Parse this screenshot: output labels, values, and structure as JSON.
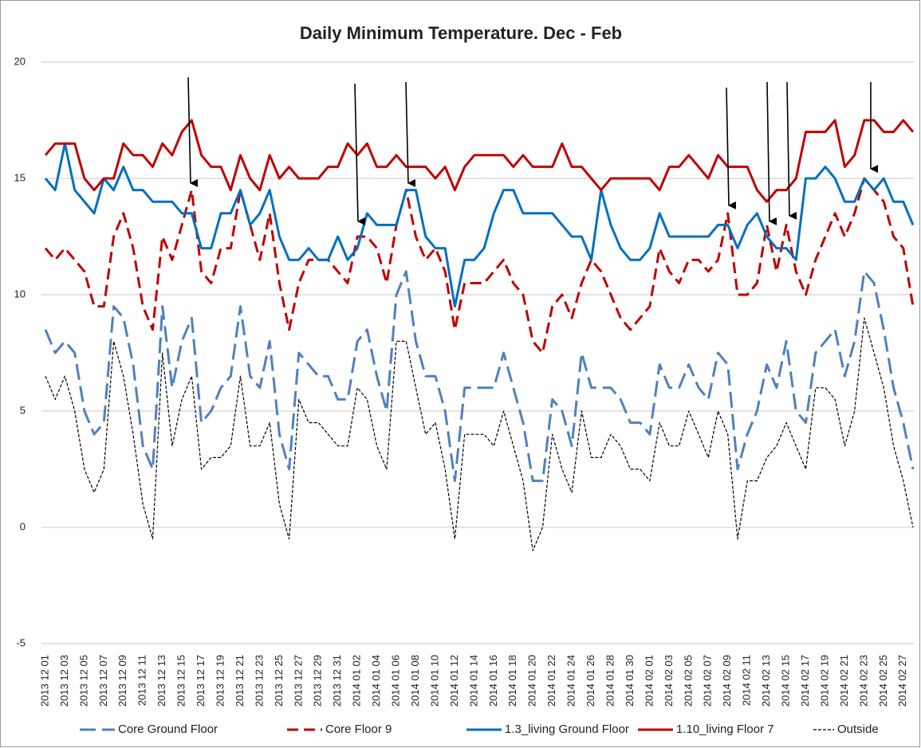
{
  "chart_data": {
    "type": "line",
    "title": "Daily Minimum Temperature. Dec - Feb",
    "categories": [
      "2013 12 01",
      null,
      "2013 12 03",
      null,
      "2013 12 05",
      null,
      "2013 12 07",
      null,
      "2013 12 09",
      null,
      "2013 12 11",
      null,
      "2013 12 13",
      null,
      "2013 12 15",
      null,
      "2013 12 17",
      null,
      "2013 12 19",
      null,
      "2013 12 21",
      null,
      "2013 12 23",
      null,
      "2013 12 25",
      null,
      "2013 12 27",
      null,
      "2013 12 29",
      null,
      "2013 12 31",
      null,
      "2014 01 02",
      null,
      "2014 01 04",
      null,
      "2014 01 06",
      null,
      "2014 01 08",
      null,
      "2014 01 10",
      null,
      "2014 01 12",
      null,
      "2014 01 14",
      null,
      "2014 01 16",
      null,
      "2014 01 18",
      null,
      "2014 01 20",
      null,
      "2014 01 22",
      null,
      "2014 01 24",
      null,
      "2014 01 26",
      null,
      "2014 01 28",
      null,
      "2014 01 30",
      null,
      "2014 02 01",
      null,
      "2014 02 03",
      null,
      "2014 02 05",
      null,
      "2014 02 07",
      null,
      "2014 02 09",
      null,
      "2014 02 11",
      null,
      "2014 02 13",
      null,
      "2014 02 15",
      null,
      "2014 02 17",
      null,
      "2014 02 19",
      null,
      "2014 02 21",
      null,
      "2014 02 23",
      null,
      "2014 02 25",
      null,
      "2014 02 27",
      null
    ],
    "series": [
      {
        "name": "Core Ground Floor",
        "color": "#4f81bd",
        "line_style": "long-dash",
        "values": [
          8.5,
          7.5,
          8,
          7.5,
          5,
          4,
          4.5,
          9.5,
          9,
          7,
          3.5,
          2.5,
          9.5,
          6,
          8,
          9,
          4.5,
          5,
          6,
          6.5,
          9.5,
          6.5,
          6,
          8,
          4,
          2.5,
          7.5,
          7,
          6.5,
          6.5,
          5.5,
          5.5,
          8,
          8.5,
          6.5,
          5,
          10,
          11,
          8,
          6.5,
          6.5,
          5,
          2,
          6,
          6,
          6,
          6,
          7.5,
          6,
          4.5,
          2,
          2,
          5.5,
          5,
          3.5,
          7.5,
          6,
          6,
          6,
          5.5,
          4.5,
          4.5,
          4,
          7,
          6,
          6,
          7,
          6,
          5.5,
          7.5,
          7,
          2.5,
          4,
          5,
          7,
          6,
          8,
          5,
          4.5,
          7.5,
          8,
          8.5,
          6.5,
          8,
          11,
          10.5,
          8.5,
          6,
          4.5,
          2.5
        ]
      },
      {
        "name": "Core Floor 9",
        "color": "#c00000",
        "line_style": "dash",
        "values": [
          12,
          11.5,
          12,
          11.5,
          11,
          9.5,
          9.5,
          12.5,
          13.5,
          12,
          9.5,
          8.5,
          12.5,
          11.5,
          13,
          14.5,
          11,
          10.5,
          12,
          12,
          14.5,
          13,
          11.5,
          13.5,
          10.5,
          8.5,
          10.5,
          11.5,
          11.5,
          11.5,
          11,
          10.5,
          12.5,
          12.5,
          12,
          10.5,
          13,
          14.5,
          12.5,
          11.5,
          12,
          11,
          8.5,
          10.5,
          10.5,
          10.5,
          11,
          11.5,
          10.5,
          10,
          8,
          7.5,
          9.5,
          10,
          9,
          10.5,
          11.5,
          11,
          10,
          9,
          8.5,
          9,
          9.5,
          12,
          11,
          10.5,
          11.5,
          11.5,
          11,
          11.5,
          13.5,
          10,
          10,
          10.5,
          13,
          11,
          13,
          11,
          10,
          11.5,
          12.5,
          13.5,
          12.5,
          13.5,
          15,
          14.5,
          14,
          12.5,
          12,
          9.5
        ]
      },
      {
        "name": "1.3_living Ground Floor",
        "color": "#0070c0",
        "line_style": "solid",
        "values": [
          15,
          14.5,
          16.5,
          14.5,
          14,
          13.5,
          15,
          14.5,
          15.5,
          14.5,
          14.5,
          14,
          14,
          14,
          13.5,
          13.5,
          12,
          12,
          13.5,
          13.5,
          14.5,
          13,
          13.5,
          14.5,
          12.5,
          11.5,
          11.5,
          12,
          11.5,
          11.5,
          12.5,
          11.5,
          12,
          13.5,
          13,
          13,
          13,
          14.5,
          14.5,
          12.5,
          12,
          12,
          9.5,
          11.5,
          11.5,
          12,
          13.5,
          14.5,
          14.5,
          13.5,
          13.5,
          13.5,
          13.5,
          13,
          12.5,
          12.5,
          11.5,
          14.5,
          13,
          12,
          11.5,
          11.5,
          12,
          13.5,
          12.5,
          12.5,
          12.5,
          12.5,
          12.5,
          13,
          13,
          12,
          13,
          13.5,
          12.5,
          12,
          12,
          11.5,
          15,
          15,
          15.5,
          15,
          14,
          14,
          15,
          14.5,
          15,
          14,
          14,
          13
        ]
      },
      {
        "name": "1.10_living Floor 7",
        "color": "#c00000",
        "line_style": "solid",
        "values": [
          16,
          16.5,
          16.5,
          16.5,
          15,
          14.5,
          15,
          15,
          16.5,
          16,
          16,
          15.5,
          16.5,
          16,
          17,
          17.5,
          16,
          15.5,
          15.5,
          14.5,
          16,
          15,
          14.5,
          16,
          15,
          15.5,
          15,
          15,
          15,
          15.5,
          15.5,
          16.5,
          16,
          16.5,
          15.5,
          15.5,
          16,
          15.5,
          15.5,
          15.5,
          15,
          15.5,
          14.5,
          15.5,
          16,
          16,
          16,
          16,
          15.5,
          16,
          15.5,
          15.5,
          15.5,
          16.5,
          15.5,
          15.5,
          15,
          14.5,
          15,
          15,
          15,
          15,
          15,
          14.5,
          15.5,
          15.5,
          16,
          15.5,
          15,
          16,
          15.5,
          15.5,
          15.5,
          14.5,
          14,
          14.5,
          14.5,
          15,
          17,
          17,
          17,
          17.5,
          15.5,
          16,
          17.5,
          17.5,
          17,
          17,
          17.5,
          17
        ]
      },
      {
        "name": "Outside",
        "color": "#000000",
        "line_style": "short-dash",
        "values": [
          6.5,
          5.5,
          6.5,
          5,
          2.5,
          1.5,
          2.5,
          8,
          6.5,
          4,
          1,
          -0.5,
          7.5,
          3.5,
          5.5,
          6.5,
          2.5,
          3,
          3,
          3.5,
          6.5,
          3.5,
          3.5,
          4.5,
          1,
          -0.5,
          5.5,
          4.5,
          4.5,
          4,
          3.5,
          3.5,
          6,
          5.5,
          3.5,
          2.5,
          8,
          8,
          6,
          4,
          4.5,
          2.5,
          -0.5,
          4,
          4,
          4,
          3.5,
          5,
          3.5,
          2,
          -1,
          0,
          4,
          2.5,
          1.5,
          5,
          3,
          3,
          4,
          3.5,
          2.5,
          2.5,
          2,
          4.5,
          3.5,
          3.5,
          5,
          4,
          3,
          5,
          4,
          -0.5,
          2,
          2,
          3,
          3.5,
          4.5,
          3.5,
          2.5,
          6,
          6,
          5.5,
          3.5,
          5,
          9,
          7.5,
          6,
          3.5,
          2,
          0
        ]
      }
    ],
    "ylim": [
      -5,
      20
    ],
    "yticks": [
      -5,
      0,
      5,
      10,
      15,
      20
    ],
    "grid": true,
    "legend": "bottom"
  }
}
